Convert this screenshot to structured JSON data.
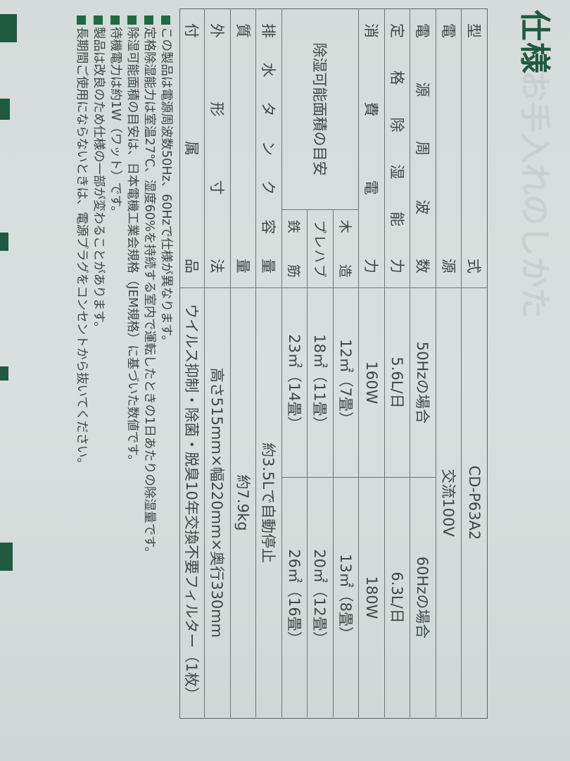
{
  "title": "仕様",
  "ghost_heading": "お手入れのしかた",
  "colors": {
    "accent": "#1f5a40",
    "text": "#3b4845",
    "rule": "#5b6864"
  },
  "table": {
    "model": {
      "label": "型式",
      "value": "CD-P63A2"
    },
    "power": {
      "label": "電源",
      "value": "交流100V"
    },
    "frequency": {
      "label": "電源周波数",
      "hz50": "50Hzの場合",
      "hz60": "60Hzの場合"
    },
    "capacity": {
      "label": "定格除湿能力",
      "hz50": "5.6L/日",
      "hz60": "6.3L/日"
    },
    "consumption": {
      "label": "消費電力",
      "hz50": "160W",
      "hz60": "180W"
    },
    "area": {
      "label": "除湿可能面積の目安",
      "rows": [
        {
          "type": "木造",
          "hz50": "12㎡（7畳）",
          "hz60": "13㎡（8畳）"
        },
        {
          "type": "プレハブ",
          "hz50": "18㎡（11畳）",
          "hz60": "20㎡（12畳）"
        },
        {
          "type": "鉄筋",
          "hz50": "23㎡（14畳）",
          "hz60": "26㎡（16畳）"
        }
      ]
    },
    "tank": {
      "label": "排水タンク容量",
      "value": "約3.5Lで自動停止"
    },
    "mass": {
      "label": "質量",
      "value": "約7.9kg"
    },
    "dimensions": {
      "label": "外形寸法",
      "value": "高さ515mm×幅220mm×奥行330mm"
    },
    "accessories": {
      "label": "付属品",
      "value": "ウイルス抑制・除菌・脱臭10年交換不要フィルター（1枚）"
    }
  },
  "notes": [
    "この製品は電源周波数50Hz、60Hzで仕様が異なります。",
    "定格除湿能力は室温27℃、湿度60%を持続する室内で運転したときの1日あたりの除湿量です。",
    "除湿可能面積の目安は、日本電機工業会規格（JEM規格）に基づいた数値です。",
    "待機電力は約1W（ワット）です。",
    "製品は改良のため仕様の一部が変わることがあります。",
    "長期間ご使用にならないときは、電源プラグをコンセントから抜いてください。"
  ]
}
